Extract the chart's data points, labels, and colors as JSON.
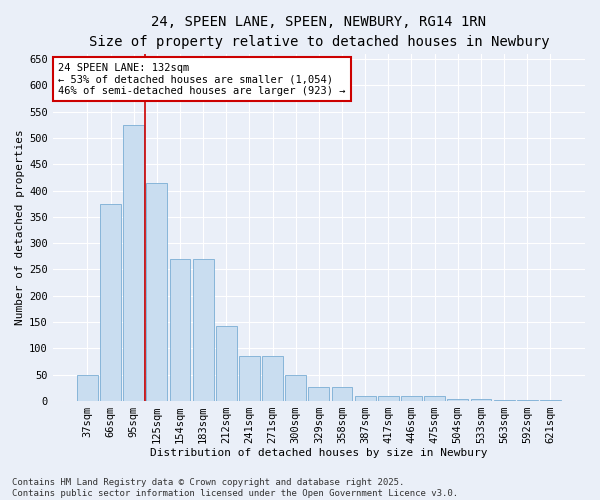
{
  "title": "24, SPEEN LANE, SPEEN, NEWBURY, RG14 1RN",
  "subtitle": "Size of property relative to detached houses in Newbury",
  "xlabel": "Distribution of detached houses by size in Newbury",
  "ylabel": "Number of detached properties",
  "categories": [
    "37sqm",
    "66sqm",
    "95sqm",
    "125sqm",
    "154sqm",
    "183sqm",
    "212sqm",
    "241sqm",
    "271sqm",
    "300sqm",
    "329sqm",
    "358sqm",
    "387sqm",
    "417sqm",
    "446sqm",
    "475sqm",
    "504sqm",
    "533sqm",
    "563sqm",
    "592sqm",
    "621sqm"
  ],
  "values": [
    50,
    375,
    525,
    415,
    270,
    270,
    143,
    85,
    85,
    50,
    27,
    27,
    10,
    10,
    10,
    10,
    3,
    3,
    2,
    2,
    1
  ],
  "bar_color": "#c9ddf0",
  "bar_edge_color": "#7aadd4",
  "background_color": "#eaeff8",
  "grid_color": "#ffffff",
  "vline_x": 2.5,
  "vline_color": "#cc0000",
  "annotation_text": "24 SPEEN LANE: 132sqm\n← 53% of detached houses are smaller (1,054)\n46% of semi-detached houses are larger (923) →",
  "annotation_box_edgecolor": "#cc0000",
  "annotation_fill": "#ffffff",
  "ylim": [
    0,
    660
  ],
  "yticks": [
    0,
    50,
    100,
    150,
    200,
    250,
    300,
    350,
    400,
    450,
    500,
    550,
    600,
    650
  ],
  "footer_text": "Contains HM Land Registry data © Crown copyright and database right 2025.\nContains public sector information licensed under the Open Government Licence v3.0.",
  "title_fontsize": 10,
  "axis_label_fontsize": 8,
  "tick_fontsize": 7.5,
  "annot_fontsize": 7.5,
  "footer_fontsize": 6.5
}
